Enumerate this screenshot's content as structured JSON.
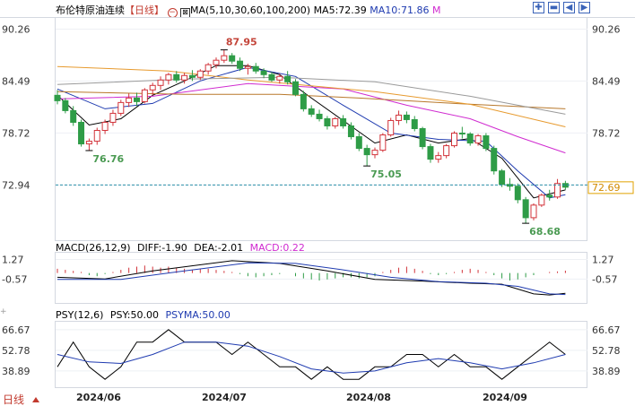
{
  "header": {
    "title": "布伦特原油连续",
    "period": "【日线】",
    "ma_label": "MA(5,10,30,60,100,200)",
    "ma5": "MA5:72.39",
    "ma10": "MA10:71.86",
    "m_tag": "M"
  },
  "colors": {
    "up": "#d2333a",
    "down": "#2e9c47",
    "ma5": "#000000",
    "ma10": "#1f3bb0",
    "ma30": "#d02bd0",
    "ma60": "#b8782b",
    "ma100": "#e79a2e",
    "ma200": "#9a9a9a"
  },
  "price_axis": {
    "ticks": [
      "90.26",
      "84.49",
      "78.72",
      "72.94"
    ],
    "current_price": "72.69",
    "current_line_value": 72.94
  },
  "annotations": [
    {
      "label": "87.95",
      "value": 87.95,
      "kind": "high"
    },
    {
      "label": "76.76",
      "value": 76.76,
      "kind": "low"
    },
    {
      "label": "75.05",
      "value": 75.05,
      "kind": "low"
    },
    {
      "label": "68.68",
      "value": 68.68,
      "kind": "low"
    }
  ],
  "macd_header": {
    "label": "MACD(26,12,9)",
    "dif": "DIFF:-1.90",
    "dea": "DEA:-2.01",
    "macd": "MACD:0.22"
  },
  "macd_axis": {
    "ticks": [
      "1.27",
      "-0.57"
    ]
  },
  "psy_header": {
    "label": "PSY(12,6)",
    "psy": "PSY:50.00",
    "psyma": "PSYMA:50.00"
  },
  "psy_axis": {
    "ticks": [
      "66.67",
      "52.78",
      "38.89"
    ]
  },
  "x_axis": {
    "labels": [
      "2024/06",
      "2024/07",
      "2024/08",
      "2024/09"
    ]
  },
  "footer": {
    "period_selector": "日线"
  },
  "chart_data": [
    {
      "type": "candlestick",
      "title": "布伦特原油连续",
      "x_labels": [
        "2024/06",
        "2024/07",
        "2024/08",
        "2024/09"
      ],
      "ylim": [
        66.8,
        91.5
      ],
      "candles": [
        [
          82.9,
          83.5,
          81.9,
          82.3
        ],
        [
          82.3,
          82.6,
          80.9,
          81.2
        ],
        [
          81.2,
          81.7,
          79.5,
          79.9
        ],
        [
          79.9,
          80.2,
          77.2,
          77.5
        ],
        [
          77.5,
          78.1,
          76.76,
          77.8
        ],
        [
          77.8,
          79.3,
          77.4,
          79.0
        ],
        [
          79.0,
          80.2,
          78.6,
          79.9
        ],
        [
          79.9,
          81.3,
          79.5,
          80.9
        ],
        [
          80.9,
          82.4,
          80.6,
          82.1
        ],
        [
          82.1,
          83.1,
          81.6,
          82.6
        ],
        [
          82.6,
          83.2,
          81.7,
          82.2
        ],
        [
          82.2,
          83.7,
          82.0,
          83.5
        ],
        [
          83.5,
          84.3,
          82.9,
          84.0
        ],
        [
          84.0,
          85.0,
          83.5,
          84.6
        ],
        [
          84.6,
          85.4,
          84.1,
          85.2
        ],
        [
          85.2,
          85.6,
          84.3,
          84.6
        ],
        [
          84.6,
          85.4,
          84.2,
          85.1
        ],
        [
          85.1,
          85.7,
          84.5,
          84.9
        ],
        [
          84.9,
          85.8,
          84.6,
          85.6
        ],
        [
          85.6,
          86.5,
          85.2,
          86.3
        ],
        [
          86.3,
          87.1,
          85.9,
          86.8
        ],
        [
          86.8,
          87.95,
          86.5,
          87.3
        ],
        [
          87.3,
          87.6,
          86.4,
          86.7
        ],
        [
          86.7,
          87.1,
          85.6,
          85.9
        ],
        [
          85.9,
          86.4,
          85.2,
          86.1
        ],
        [
          86.1,
          86.5,
          85.3,
          85.6
        ],
        [
          85.6,
          85.9,
          84.8,
          85.2
        ],
        [
          85.2,
          85.5,
          84.4,
          84.6
        ],
        [
          84.6,
          85.3,
          84.2,
          85.0
        ],
        [
          85.0,
          85.6,
          84.1,
          84.4
        ],
        [
          84.4,
          84.7,
          82.8,
          83.0
        ],
        [
          83.0,
          83.4,
          81.1,
          81.4
        ],
        [
          81.4,
          81.8,
          80.5,
          80.8
        ],
        [
          80.8,
          81.3,
          80.0,
          80.3
        ],
        [
          80.3,
          80.6,
          79.1,
          79.5
        ],
        [
          79.5,
          80.5,
          79.2,
          80.3
        ],
        [
          80.3,
          80.7,
          79.2,
          79.5
        ],
        [
          79.5,
          79.9,
          78.0,
          78.3
        ],
        [
          78.3,
          78.7,
          76.7,
          77.0
        ],
        [
          77.0,
          77.4,
          75.05,
          76.3
        ],
        [
          76.3,
          77.1,
          75.9,
          76.8
        ],
        [
          76.8,
          78.7,
          76.6,
          78.5
        ],
        [
          78.5,
          80.4,
          78.3,
          80.1
        ],
        [
          80.1,
          81.2,
          79.6,
          80.7
        ],
        [
          80.7,
          81.1,
          79.8,
          80.2
        ],
        [
          80.2,
          80.6,
          78.9,
          79.2
        ],
        [
          79.2,
          79.4,
          76.9,
          77.2
        ],
        [
          77.2,
          77.5,
          75.4,
          75.8
        ],
        [
          75.8,
          76.6,
          75.4,
          76.2
        ],
        [
          76.2,
          77.5,
          75.9,
          77.3
        ],
        [
          77.3,
          78.9,
          77.1,
          78.7
        ],
        [
          78.7,
          79.4,
          78.1,
          78.6
        ],
        [
          78.6,
          78.8,
          77.3,
          77.6
        ],
        [
          77.6,
          78.6,
          77.3,
          78.4
        ],
        [
          78.4,
          78.7,
          76.7,
          77.0
        ],
        [
          77.0,
          77.3,
          74.1,
          74.5
        ],
        [
          74.5,
          74.7,
          72.7,
          73.0
        ],
        [
          73.0,
          73.7,
          72.3,
          72.8
        ],
        [
          72.8,
          73.1,
          70.9,
          71.3
        ],
        [
          71.3,
          71.6,
          68.68,
          69.3
        ],
        [
          69.3,
          70.9,
          69.0,
          70.7
        ],
        [
          70.7,
          72.0,
          70.5,
          71.8
        ],
        [
          71.8,
          72.4,
          71.2,
          71.6
        ],
        [
          71.6,
          73.6,
          71.4,
          73.1
        ],
        [
          73.1,
          73.4,
          72.4,
          72.69
        ]
      ],
      "ma_series": [
        {
          "name": "MA5",
          "values": [
            [
              0,
              82.9
            ],
            [
              4,
              79.6
            ],
            [
              8,
              80.3
            ],
            [
              12,
              82.9
            ],
            [
              16,
              84.5
            ],
            [
              20,
              86.2
            ],
            [
              24,
              86.2
            ],
            [
              28,
              85.2
            ],
            [
              32,
              82.6
            ],
            [
              36,
              80.1
            ],
            [
              40,
              77.6
            ],
            [
              44,
              78.5
            ],
            [
              48,
              77.6
            ],
            [
              52,
              78.1
            ],
            [
              56,
              75.9
            ],
            [
              60,
              71.5
            ],
            [
              64,
              72.39
            ]
          ]
        },
        {
          "name": "MA10",
          "values": [
            [
              0,
              83.6
            ],
            [
              6,
              81.4
            ],
            [
              12,
              82.0
            ],
            [
              18,
              84.5
            ],
            [
              24,
              86.0
            ],
            [
              30,
              85.0
            ],
            [
              36,
              81.8
            ],
            [
              42,
              78.7
            ],
            [
              48,
              78.0
            ],
            [
              54,
              77.8
            ],
            [
              58,
              74.5
            ],
            [
              62,
              71.5
            ],
            [
              64,
              71.86
            ]
          ]
        },
        {
          "name": "MA30",
          "values": [
            [
              0,
              82.5
            ],
            [
              12,
              82.8
            ],
            [
              24,
              84.2
            ],
            [
              36,
              83.6
            ],
            [
              44,
              81.8
            ],
            [
              52,
              80.3
            ],
            [
              58,
              78.3
            ],
            [
              64,
              76.5
            ]
          ]
        },
        {
          "name": "MA60",
          "values": [
            [
              0,
              83.3
            ],
            [
              16,
              83.0
            ],
            [
              28,
              83.0
            ],
            [
              38,
              82.6
            ],
            [
              50,
              82.0
            ],
            [
              64,
              81.4
            ]
          ]
        },
        {
          "name": "MA100",
          "values": [
            [
              0,
              86.1
            ],
            [
              14,
              85.6
            ],
            [
              24,
              84.6
            ],
            [
              40,
              83.3
            ],
            [
              52,
              81.9
            ],
            [
              64,
              79.4
            ]
          ]
        },
        {
          "name": "MA200",
          "values": [
            [
              0,
              84.1
            ],
            [
              16,
              84.7
            ],
            [
              28,
              84.9
            ],
            [
              40,
              84.4
            ],
            [
              52,
              82.8
            ],
            [
              64,
              80.8
            ]
          ]
        }
      ]
    },
    {
      "type": "macd",
      "title": "MACD(26,12,9)",
      "ylim": [
        -2.8,
        1.9
      ],
      "dif": [
        [
          0,
          -0.4
        ],
        [
          6,
          -0.55
        ],
        [
          12,
          0.2
        ],
        [
          22,
          1.15
        ],
        [
          28,
          0.9
        ],
        [
          34,
          0.2
        ],
        [
          40,
          -0.6
        ],
        [
          46,
          -0.75
        ],
        [
          52,
          -0.95
        ],
        [
          56,
          -1.05
        ],
        [
          60,
          -1.95
        ],
        [
          62,
          -2.05
        ],
        [
          64,
          -1.9
        ]
      ],
      "dea": [
        [
          0,
          -0.6
        ],
        [
          8,
          -0.6
        ],
        [
          16,
          0.2
        ],
        [
          24,
          0.95
        ],
        [
          30,
          0.9
        ],
        [
          36,
          0.3
        ],
        [
          42,
          -0.4
        ],
        [
          48,
          -0.8
        ],
        [
          54,
          -0.95
        ],
        [
          58,
          -1.25
        ],
        [
          62,
          -1.95
        ],
        [
          64,
          -2.01
        ]
      ],
      "histogram": [
        0.4,
        0.3,
        0.2,
        0.1,
        -0.2,
        -0.3,
        -0.1,
        0.1,
        0.3,
        0.5,
        0.6,
        0.7,
        0.6,
        0.5,
        0.6,
        0.5,
        0.4,
        0.3,
        0.4,
        0.4,
        0.3,
        0.2,
        0.1,
        -0.1,
        -0.3,
        -0.4,
        -0.3,
        -0.2,
        -0.1,
        0.0,
        -0.3,
        -0.5,
        -0.6,
        -0.7,
        -0.6,
        -0.5,
        -0.4,
        -0.4,
        -0.5,
        -0.4,
        -0.3,
        0.1,
        0.3,
        0.5,
        0.6,
        0.4,
        0.2,
        -0.1,
        -0.2,
        -0.1,
        0.1,
        0.3,
        0.4,
        0.3,
        0.1,
        -0.2,
        -0.5,
        -0.7,
        -0.6,
        -0.4,
        -0.2,
        0.0,
        0.1,
        0.15,
        0.22
      ]
    },
    {
      "type": "line",
      "title": "PSY(12,6)",
      "ylim": [
        28,
        72
      ],
      "series": [
        {
          "name": "PSY",
          "values": [
            [
              0,
              41.7
            ],
            [
              2,
              58.3
            ],
            [
              4,
              41.7
            ],
            [
              6,
              33.3
            ],
            [
              8,
              41.7
            ],
            [
              10,
              58.3
            ],
            [
              12,
              58.3
            ],
            [
              14,
              66.7
            ],
            [
              16,
              58.3
            ],
            [
              18,
              58.3
            ],
            [
              20,
              58.3
            ],
            [
              22,
              50.0
            ],
            [
              24,
              58.3
            ],
            [
              26,
              50.0
            ],
            [
              28,
              41.7
            ],
            [
              30,
              41.7
            ],
            [
              32,
              33.3
            ],
            [
              34,
              41.7
            ],
            [
              36,
              33.3
            ],
            [
              38,
              33.3
            ],
            [
              40,
              41.7
            ],
            [
              42,
              41.7
            ],
            [
              44,
              50.0
            ],
            [
              46,
              50.0
            ],
            [
              48,
              41.7
            ],
            [
              50,
              50.0
            ],
            [
              52,
              41.7
            ],
            [
              54,
              41.7
            ],
            [
              56,
              33.3
            ],
            [
              58,
              41.7
            ],
            [
              60,
              50.0
            ],
            [
              62,
              58.3
            ],
            [
              64,
              50.0
            ]
          ]
        },
        {
          "name": "PSYMA",
          "values": [
            [
              0,
              50.0
            ],
            [
              4,
              45.0
            ],
            [
              8,
              44.0
            ],
            [
              12,
              50.0
            ],
            [
              16,
              58.3
            ],
            [
              20,
              58.3
            ],
            [
              24,
              55.6
            ],
            [
              28,
              48.6
            ],
            [
              32,
              40.3
            ],
            [
              36,
              37.5
            ],
            [
              40,
              38.9
            ],
            [
              44,
              44.4
            ],
            [
              48,
              47.2
            ],
            [
              52,
              44.4
            ],
            [
              56,
              40.3
            ],
            [
              60,
              44.4
            ],
            [
              64,
              50.0
            ]
          ]
        }
      ]
    }
  ]
}
